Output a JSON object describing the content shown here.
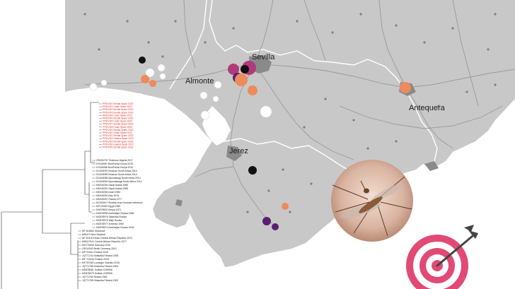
{
  "map": {
    "places": [
      {
        "name": "Sevilla"
      },
      {
        "name": "Almonte"
      },
      {
        "name": "Jerez"
      },
      {
        "name": "Antequera"
      }
    ],
    "markers": [
      {
        "kind": "black"
      },
      {
        "kind": "white"
      },
      {
        "kind": "white"
      },
      {
        "kind": "orange"
      },
      {
        "kind": "orange"
      },
      {
        "kind": "white"
      },
      {
        "kind": "magenta"
      },
      {
        "kind": "magenta"
      },
      {
        "kind": "purple"
      },
      {
        "kind": "black"
      },
      {
        "kind": "orange"
      },
      {
        "kind": "orange"
      },
      {
        "kind": "white"
      },
      {
        "kind": "white"
      },
      {
        "kind": "white"
      },
      {
        "kind": "orange"
      },
      {
        "kind": "white"
      },
      {
        "kind": "black"
      },
      {
        "kind": "orange"
      },
      {
        "kind": "purple"
      },
      {
        "kind": "purple"
      },
      {
        "kind": "white"
      },
      {
        "kind": "white"
      },
      {
        "kind": "white"
      }
    ],
    "colors": {
      "land": "#c8c8c8",
      "sea": "#ffffff",
      "border": "#ffffff",
      "black": "#111111",
      "white": "#ffffff",
      "orange": "#ee8a5c",
      "magenta": "#b03a7a",
      "purple": "#5a1f6e"
    }
  },
  "tree": {
    "highlighted_labels": [
      "PP6/V/40 Sevilla Spain 2022",
      "PP6/V/41 Cadiz Spain 2022",
      "PP6/V/42 Sevilla Spain 2022",
      "PP6/V/43 Sevilla Spain 2022",
      "PP6/V/44 Cadiz Spain 2022",
      "PP6/V/45 Sevilla Spain 2022",
      "PP6/V/46 Cadiz Spain 2022",
      "PP6/V/47 Sevilla Spain 2022",
      "PP6/V/48 Cadiz Spain 2022",
      "PP6/V/49 Sevilla Spain 2022",
      "PP6/V/50 Cadiz Spain 2022",
      "PP6/V/51 Sevilla Spain 2022",
      "PP6/V/52 Huelva Spain 2022",
      "PP6/V/53 Sevilla Spain 2022",
      "PP6/V/54 Huelva Spain 2022",
      "PP6/V/55 Sevilla Spain 2022"
    ],
    "labels": [
      "OR494700 Timimoun Algeria 2017",
      "KY616987 BoniForest Kenya 2010",
      "KY616988 BoniForest Kenya 2010",
      "DU343090 Kwazulu South Africa 2014",
      "DU343089 Kwazulu South Africa 2014",
      "DU343088 Mpumalnga South Africa 2014",
      "DU343084 Mpumalanga South Africa 2014",
      "MK045254 Saudi Arabia 1985",
      "MK045251 Saudi Arabia 1985",
      "MK045256 Israel 1984",
      "MK045252 Italy 1975",
      "MK045257 Russia 1977",
      "NC001507 Sindbis virus Genome reference",
      "MT121962 Egypt 1952",
      "DN978902 Kenya 1971",
      "MG878953 Azerbaijan Russia 1969",
      "MG878976 Tatarstan Russia",
      "MG878975 Maly Russia",
      "MG878977 Armenia 1990",
      "MG878974 Azerbaijan Russia 2003",
      "NF 404860 Girdwood",
      "MW474 New Zealand",
      "NF 403115 Bozo Central African Republic 1974",
      "MW117541 Central African Republic 1977",
      "MG770605 Germany 2019",
      "LR010040 Berlin Germany 2012",
      "MF715441 Finland 2018",
      "JQ771740 Kirkantka Finland 2005",
      "MF 715144 Finland 2018",
      "MF757080 Lovanger Sweden 2015",
      "JQ771798 Kirkantka Finland 2002",
      "MG878081 Smillas LE59SW",
      "MG878079 Smillas LE59SW",
      "JQ771784 Russia 1963",
      "JQ771785 Kirkantka Finland 2002"
    ]
  }
}
